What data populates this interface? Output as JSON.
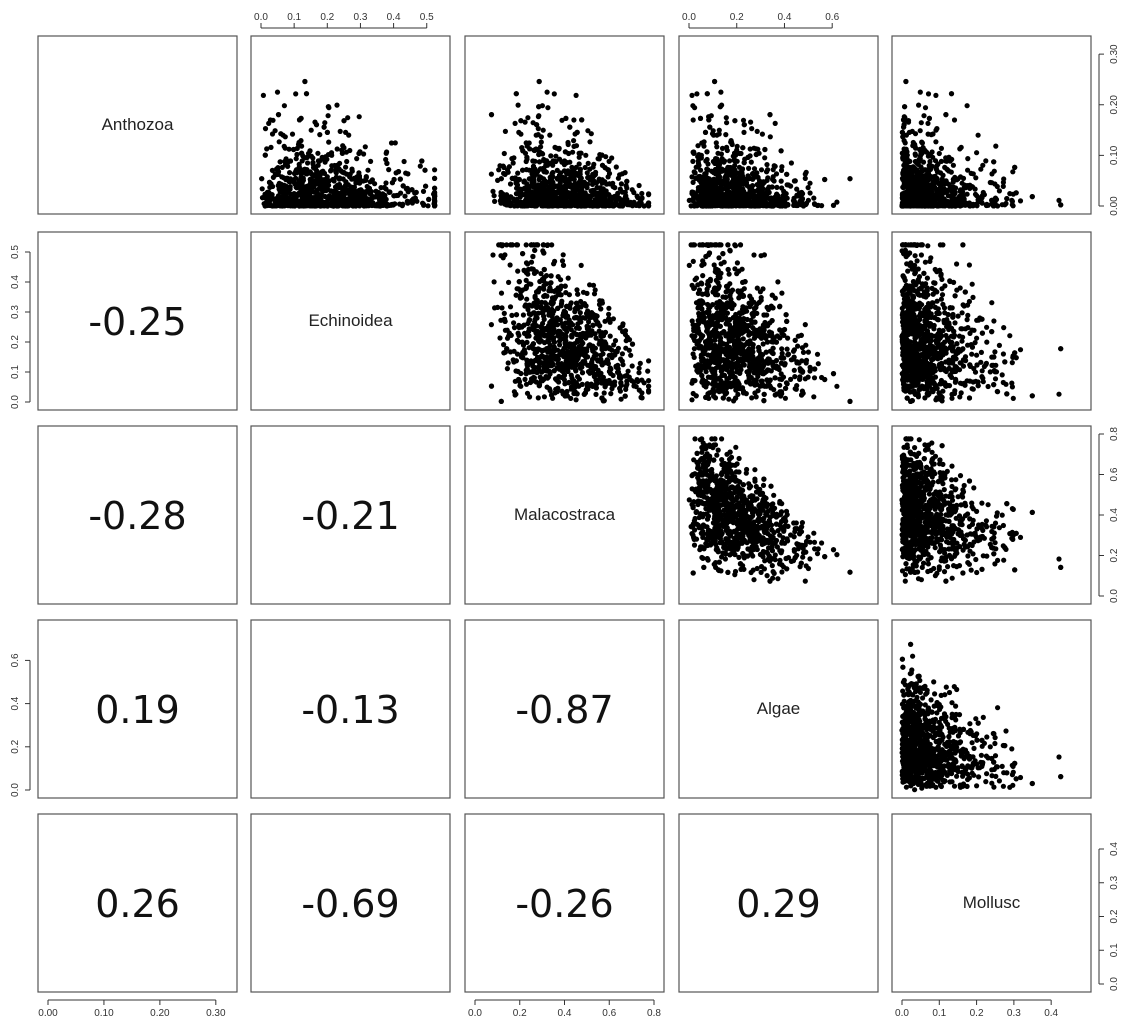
{
  "chart_data": {
    "type": "scatter",
    "title": "",
    "variables": [
      "Anthozoa",
      "Echinoidea",
      "Malacostraca",
      "Algae",
      "Mollusc"
    ],
    "axis_ranges": {
      "Anthozoa": [
        0,
        0.32
      ],
      "Echinoidea": [
        0,
        0.54
      ],
      "Malacostraca": [
        0,
        0.8
      ],
      "Algae": [
        0,
        0.75
      ],
      "Mollusc": [
        0,
        0.48
      ]
    },
    "axis_ticks": {
      "Anthozoa": [
        "0.00",
        "0.10",
        "0.20",
        "0.30"
      ],
      "Echinoidea": [
        "0.0",
        "0.1",
        "0.2",
        "0.3",
        "0.4",
        "0.5"
      ],
      "Malacostraca": [
        "0.0",
        "0.2",
        "0.4",
        "0.6",
        "0.8"
      ],
      "Algae": [
        "0.0",
        "0.2",
        "0.4",
        "0.6"
      ],
      "Mollusc": [
        "0.0",
        "0.1",
        "0.2",
        "0.3",
        "0.4"
      ]
    },
    "correlations": [
      {
        "row": "Echinoidea",
        "col": "Anthozoa",
        "label": "-0.25"
      },
      {
        "row": "Malacostraca",
        "col": "Anthozoa",
        "label": "-0.28"
      },
      {
        "row": "Malacostraca",
        "col": "Echinoidea",
        "label": "-0.21"
      },
      {
        "row": "Algae",
        "col": "Anthozoa",
        "label": "0.19"
      },
      {
        "row": "Algae",
        "col": "Echinoidea",
        "label": "-0.13"
      },
      {
        "row": "Algae",
        "col": "Malacostraca",
        "label": "-0.87"
      },
      {
        "row": "Mollusc",
        "col": "Anthozoa",
        "label": "0.26"
      },
      {
        "row": "Mollusc",
        "col": "Echinoidea",
        "label": "-0.69"
      },
      {
        "row": "Mollusc",
        "col": "Malacostraca",
        "label": "-0.26"
      },
      {
        "row": "Mollusc",
        "col": "Algae",
        "label": "0.29"
      }
    ],
    "grid": false,
    "legend": "none",
    "point_color": "#000000"
  }
}
